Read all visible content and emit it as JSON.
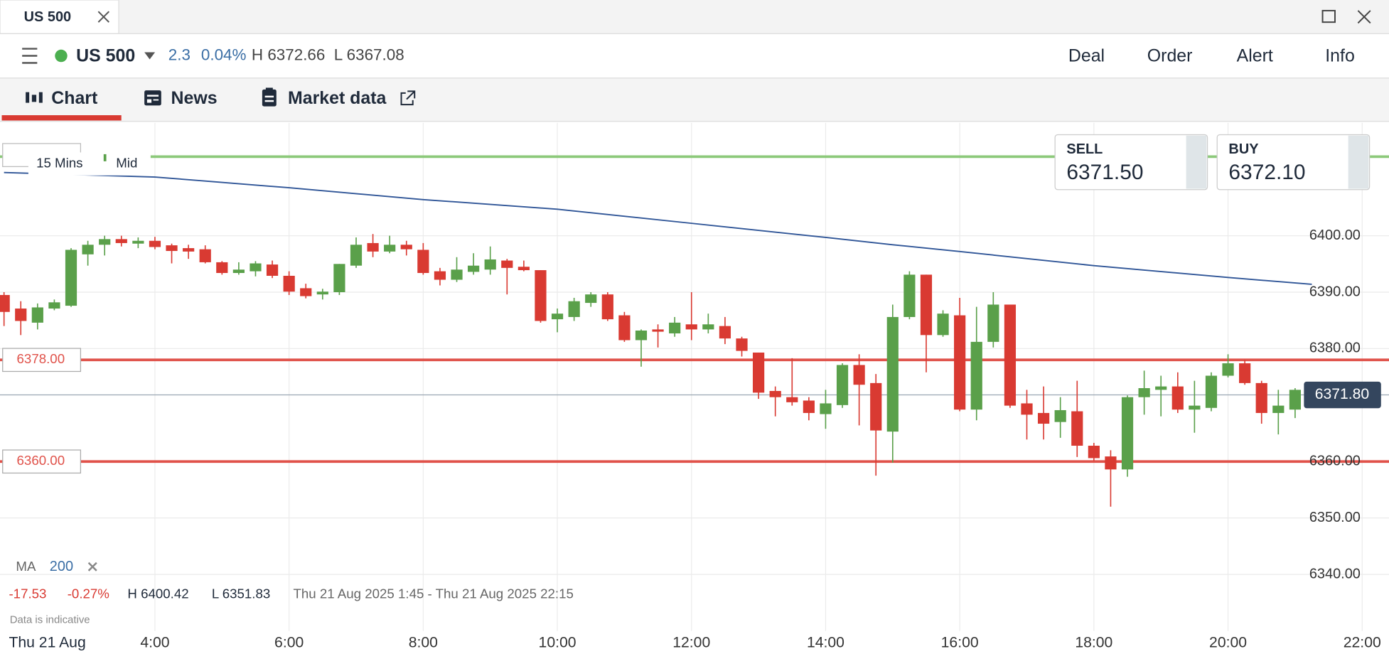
{
  "window": {
    "tab": "US 500"
  },
  "header": {
    "instrument": "US 500",
    "change": "2.3",
    "change_pct": "0.04%",
    "high": "H 6372.66",
    "low": "L 6367.08",
    "actions": [
      "Deal",
      "Order",
      "Alert",
      "Info"
    ]
  },
  "tabs": [
    "Chart",
    "News",
    "Market data"
  ],
  "chart_controls": {
    "interval": "15 Mins",
    "price_type": "Mid"
  },
  "quote": {
    "sell_label": "SELL",
    "sell": "6371.50",
    "buy_label": "BUY",
    "buy": "6372.10"
  },
  "summary": {
    "change": "-17.53",
    "change_pct": "-0.27%",
    "high": "H 6400.42",
    "low": "L 6351.83",
    "range": "Thu 21 Aug 2025 1:45 - Thu 21 Aug 2025 22:15",
    "note": "Data is indicative",
    "date": "Thu 21 Aug"
  },
  "chart_data": {
    "type": "candlestick",
    "up_color": "#5aa04a",
    "down_color": "#d93a32",
    "grid": true,
    "x": [
      1.75,
      2,
      2.25,
      2.5,
      2.75,
      3,
      3.25,
      3.5,
      3.75,
      4,
      4.25,
      4.5,
      4.75,
      5,
      5.25,
      5.5,
      5.75,
      6,
      6.25,
      6.5,
      6.75,
      7,
      7.25,
      7.5,
      7.75,
      8,
      8.25,
      8.5,
      8.75,
      9,
      9.25,
      9.5,
      9.75,
      10,
      10.25,
      10.5,
      10.75,
      11,
      11.25,
      11.5,
      11.75,
      12,
      12.25,
      12.5,
      12.75,
      13,
      13.25,
      13.5,
      13.75,
      14,
      14.25,
      14.5,
      14.75,
      15,
      15.25,
      15.5,
      15.75,
      16,
      16.25,
      16.5,
      16.75,
      17,
      17.25,
      17.5,
      17.75,
      18,
      18.25,
      18.5,
      18.75,
      19,
      19.25,
      19.5,
      19.75,
      20,
      20.25,
      20.5,
      20.75,
      21
    ],
    "open": [
      6389.5,
      6387.1,
      6384.6,
      6387.1,
      6387.6,
      6396.7,
      6398.4,
      6399.4,
      6398.6,
      6399.1,
      6398.3,
      6397.8,
      6397.6,
      6395.3,
      6393.4,
      6393.7,
      6394.9,
      6392.9,
      6390.7,
      6389.6,
      6390,
      6394.7,
      6398.7,
      6397.2,
      6398.4,
      6397.5,
      6393.7,
      6392.2,
      6393.6,
      6394,
      6395.6,
      6394.5,
      6393.9,
      6385.2,
      6385.6,
      6388.1,
      6389.6,
      6385.9,
      6381.5,
      6383.4,
      6382.7,
      6384.3,
      6383.4,
      6384,
      6381.8,
      6379.3,
      6372.5,
      6371.4,
      6370.8,
      6368.4,
      6370,
      6377.1,
      6373.9,
      6365.3,
      6385.6,
      6393.1,
      6382.4,
      6385.9,
      6369.2,
      6381.2,
      6387.8,
      6370.3,
      6368.6,
      6367,
      6368.9,
      6362.8,
      6360.9,
      6358.6,
      6371.4,
      6372.7,
      6373.3,
      6369.2,
      6369.5,
      6375.2,
      6377.4,
      6373.9,
      6368.6,
      6369.2
    ],
    "high": [
      6390,
      6388.4,
      6388,
      6388.7,
      6397.8,
      6399.1,
      6400,
      6400,
      6399.7,
      6399.8,
      6398.6,
      6398.4,
      6398.3,
      6395.5,
      6395.3,
      6395.5,
      6395.6,
      6393.7,
      6391.5,
      6390.6,
      6395,
      6399.7,
      6400.3,
      6400,
      6399.1,
      6398.7,
      6394.3,
      6396.2,
      6396.9,
      6398.1,
      6395.9,
      6395.6,
      6393.9,
      6387.1,
      6389,
      6390,
      6390,
      6386.5,
      6383.4,
      6384.3,
      6385.6,
      6390,
      6386.2,
      6385.6,
      6382.1,
      6379.3,
      6373.3,
      6378.3,
      6371.4,
      6372.7,
      6377.4,
      6379,
      6375.5,
      6387.8,
      6393.7,
      6393.1,
      6386.8,
      6389,
      6387.4,
      6390,
      6387.8,
      6372.7,
      6373.3,
      6371.4,
      6374.3,
      6363.3,
      6362,
      6371.7,
      6376.1,
      6375.2,
      6375.8,
      6374.3,
      6375.8,
      6379,
      6378,
      6374.3,
      6372.7,
      6373
    ],
    "low": [
      6384,
      6382.4,
      6383.4,
      6386.8,
      6387.4,
      6394.7,
      6396.5,
      6398.1,
      6397.8,
      6397.6,
      6395.1,
      6395.9,
      6395.1,
      6393.1,
      6393.1,
      6392.8,
      6392.5,
      6389.5,
      6388.9,
      6388.7,
      6389.5,
      6394.3,
      6396.2,
      6396.9,
      6396.5,
      6393.1,
      6391.2,
      6391.8,
      6393.1,
      6393.1,
      6389.6,
      6393.7,
      6384.6,
      6382.9,
      6384.9,
      6387.4,
      6384.9,
      6381.2,
      6376.8,
      6380.2,
      6382.1,
      6381.5,
      6382.7,
      6380.8,
      6378.6,
      6371.1,
      6368,
      6369.9,
      6367.3,
      6365.8,
      6369.5,
      6366.4,
      6357.5,
      6359.8,
      6385.2,
      6375.8,
      6382.1,
      6368.9,
      6367.3,
      6380.2,
      6369.5,
      6363.9,
      6363.9,
      6364.2,
      6360.8,
      6360.1,
      6352,
      6357.3,
      6368.3,
      6368,
      6368.6,
      6365.1,
      6368.9,
      6374.9,
      6373.6,
      6366.7,
      6364.8,
      6367.7
    ],
    "close": [
      6386.5,
      6384.9,
      6387.3,
      6388.2,
      6397.5,
      6398.4,
      6399.4,
      6398.7,
      6399.1,
      6398,
      6397.3,
      6397.2,
      6395.3,
      6393.4,
      6394,
      6395.1,
      6392.9,
      6390.1,
      6389.3,
      6390.1,
      6395,
      6398.4,
      6397.2,
      6398.4,
      6397.6,
      6393.4,
      6392.2,
      6394,
      6394.7,
      6395.8,
      6394.3,
      6393.9,
      6384.9,
      6386.2,
      6388.4,
      6389.6,
      6385.2,
      6381.5,
      6383.2,
      6383,
      6384.6,
      6383.4,
      6384.3,
      6381.8,
      6379.6,
      6372.2,
      6371.4,
      6370.5,
      6368.6,
      6370.3,
      6377.1,
      6373.6,
      6365.5,
      6385.6,
      6393.1,
      6382.4,
      6386.2,
      6369.2,
      6381.2,
      6387.8,
      6369.9,
      6368.3,
      6366.7,
      6369.1,
      6362.8,
      6360.6,
      6358.6,
      6371.4,
      6373,
      6373.3,
      6369.2,
      6369.9,
      6375.2,
      6377.4,
      6373.9,
      6368.6,
      6369.9,
      6372.7
    ],
    "ma": {
      "name": "MA",
      "period": "200",
      "color": "#2f5597",
      "x": [
        1.75,
        4,
        6,
        8,
        10,
        12,
        14,
        15,
        16,
        18,
        20,
        21.25
      ],
      "values": [
        6411.2,
        6410.4,
        6408.5,
        6406.4,
        6404.7,
        6402.2,
        6399.7,
        6398.4,
        6397.2,
        6394.7,
        6392.6,
        6391.4
      ]
    },
    "levels": [
      {
        "value": 6414,
        "color": "#8cc97a"
      },
      {
        "value": 6378,
        "label": "6378.00",
        "color": "#e0524a"
      },
      {
        "value": 6360,
        "label": "6360.00",
        "color": "#e0524a"
      }
    ],
    "last_price": {
      "value": 6371.8,
      "label": "6371.80",
      "color": "#34465e"
    },
    "xlim": [
      1.69,
      22.4
    ],
    "xticks": [
      {
        "value": 4,
        "label": "4:00"
      },
      {
        "value": 6,
        "label": "6:00"
      },
      {
        "value": 8,
        "label": "8:00"
      },
      {
        "value": 10,
        "label": "10:00"
      },
      {
        "value": 12,
        "label": "12:00"
      },
      {
        "value": 14,
        "label": "14:00"
      },
      {
        "value": 16,
        "label": "16:00"
      },
      {
        "value": 18,
        "label": "18:00"
      },
      {
        "value": 20,
        "label": "20:00"
      },
      {
        "value": 22,
        "label": "22:00"
      }
    ],
    "ylim": [
      6330,
      6420
    ],
    "yticks": [
      {
        "value": 6340,
        "label": "6340.00"
      },
      {
        "value": 6350,
        "label": "6350.00"
      },
      {
        "value": 6360,
        "label": "6360.00"
      },
      {
        "value": 6380,
        "label": "6380.00"
      },
      {
        "value": 6390,
        "label": "6390.00"
      },
      {
        "value": 6400,
        "label": "6400.00"
      }
    ]
  }
}
